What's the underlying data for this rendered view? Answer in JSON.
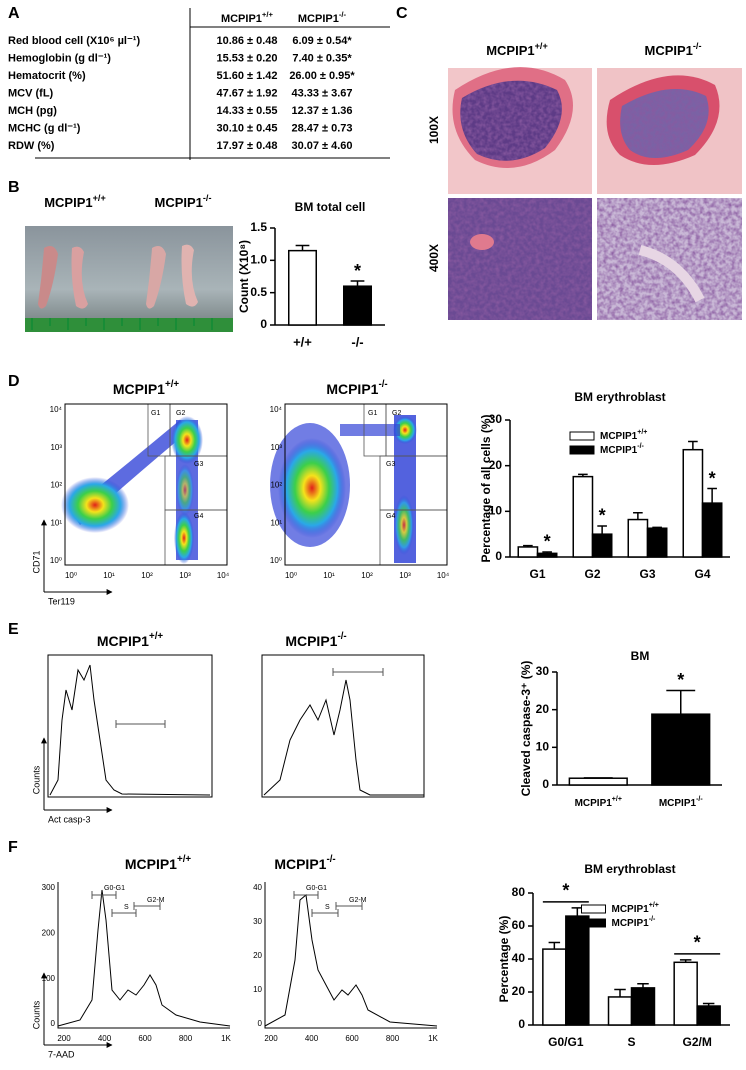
{
  "panel_labels": [
    "A",
    "B",
    "C",
    "D",
    "E",
    "F"
  ],
  "table": {
    "columns": [
      "MCPIP1+/+",
      "MCPIP1-/-"
    ],
    "rows": [
      [
        "Red blood cell (X10⁶ µl⁻¹)",
        "10.86 ± 0.48",
        "6.09 ± 0.54*"
      ],
      [
        "Hemoglobin (g dl⁻¹)",
        "15.53 ± 0.20",
        "7.40 ± 0.35*"
      ],
      [
        "Hematocrit (%)",
        "51.60 ± 1.42",
        "26.00 ± 0.95*"
      ],
      [
        "MCV (fL)",
        "47.67 ± 1.92",
        "43.33 ± 3.67"
      ],
      [
        "MCH (pg)",
        "14.33 ± 0.55",
        "12.37 ± 1.36"
      ],
      [
        "MCHC (g dl⁻¹)",
        "30.10 ± 0.45",
        "28.47 ± 0.73"
      ],
      [
        "RDW (%)",
        "17.97 ± 0.48",
        "30.07 ± 4.60"
      ]
    ]
  },
  "photo": {
    "labels": [
      "MCPIP1+/+",
      "MCPIP1-/-"
    ]
  },
  "histology": {
    "columns": [
      "MCPIP1+/+",
      "MCPIP1-/-"
    ],
    "rows": [
      "100X",
      "400X"
    ]
  },
  "flow_plots": [
    {
      "title": "MCPIP1+/+",
      "x_label": "Ter119",
      "y_label": "CD71",
      "xticks": [
        "10⁰",
        "10¹",
        "10²",
        "10³",
        "10⁴"
      ],
      "yticks": [
        "10⁰",
        "10¹",
        "10²",
        "10³",
        "10⁴"
      ],
      "gates": [
        "G1",
        "G2",
        "G3",
        "G4"
      ]
    },
    {
      "title": "MCPIP1-/-",
      "xticks": [
        "10⁰",
        "10¹",
        "10²",
        "10³",
        "10⁴"
      ],
      "yticks": [
        "10⁰",
        "10¹",
        "10²",
        "10³",
        "10⁴"
      ],
      "gates": [
        "G1",
        "G2",
        "G3",
        "G4"
      ]
    },
    {
      "title": "MCPIP1+/+",
      "x_label": "Act casp-3",
      "y_label": "Counts"
    },
    {
      "title": "MCPIP1-/-"
    },
    {
      "title": "MCPIP1+/+",
      "x_label": "7-AAD",
      "y_label": "Counts",
      "xticks": [
        "200",
        "400",
        "600",
        "800",
        "1K"
      ],
      "yticks": [
        "0",
        "100",
        "200",
        "300"
      ],
      "gates": [
        "G0-G1",
        "S",
        "G2-M"
      ]
    },
    {
      "title": "MCPIP1-/-",
      "xticks": [
        "200",
        "400",
        "600",
        "800",
        "1K"
      ],
      "yticks": [
        "0",
        "10",
        "20",
        "30",
        "40"
      ],
      "gates": [
        "G0-G1",
        "S",
        "G2-M"
      ]
    }
  ],
  "chart_data": [
    {
      "type": "bar",
      "title": "BM total cell",
      "y_label": "Count (X10⁸)",
      "categories": [
        "+/+",
        "-/-"
      ],
      "values": [
        1.15,
        0.6
      ],
      "errors": [
        0.08,
        0.08
      ],
      "colors": [
        "#ffffff",
        "#000000"
      ],
      "annotations": [
        null,
        "*"
      ],
      "ylim": [
        0,
        1.5
      ],
      "yticks": [
        0,
        0.5,
        {
          "value": 1,
          "label": "1.0"
        },
        1.5
      ]
    },
    {
      "type": "bar",
      "title": "BM erythroblast",
      "y_label": "Percentage of all cells (%)",
      "categories": [
        "G1",
        "G2",
        "G3",
        "G4"
      ],
      "series": [
        {
          "name": "MCPIP1+/+",
          "color": "#ffffff",
          "values": [
            2.2,
            17.6,
            8.2,
            23.5
          ],
          "errors": [
            0.3,
            0.5,
            1.5,
            1.8
          ]
        },
        {
          "name": "MCPIP1-/-",
          "color": "#000000",
          "values": [
            0.8,
            5.0,
            6.3,
            11.8
          ],
          "errors": [
            0.3,
            1.8,
            0.2,
            3.2
          ],
          "annotations": [
            "*",
            "*",
            null,
            "*"
          ]
        }
      ],
      "legend": "top",
      "ylim": [
        0,
        30
      ],
      "yticks": [
        0,
        10,
        20,
        30
      ]
    },
    {
      "type": "bar",
      "title": "BM",
      "y_label": "Cleaved caspase-3⁺ (%)",
      "categories": [
        "MCPIP1+/+",
        "MCPIP1-/-"
      ],
      "values": [
        1.8,
        18.8
      ],
      "errors": [
        0.1,
        6.3
      ],
      "colors": [
        "#ffffff",
        "#000000"
      ],
      "annotations": [
        null,
        "*"
      ],
      "ylim": [
        0,
        30
      ],
      "yticks": [
        0,
        10,
        20,
        30
      ]
    },
    {
      "type": "bar",
      "title": "BM erythroblast",
      "y_label": "Percentage (%)",
      "categories": [
        "G0/G1",
        "S",
        "G2/M"
      ],
      "series": [
        {
          "name": "MCPIP1+/+",
          "color": "#ffffff",
          "values": [
            46,
            17,
            38
          ],
          "errors": [
            4,
            4.5,
            1.5
          ]
        },
        {
          "name": "MCPIP1-/-",
          "color": "#000000",
          "values": [
            66,
            22.5,
            11.5
          ],
          "errors": [
            5,
            2.5,
            1.5
          ]
        }
      ],
      "annotations": [
        "*",
        null,
        "*"
      ],
      "legend": "top",
      "ylim": [
        0,
        80
      ],
      "yticks": [
        0,
        20,
        40,
        60,
        80
      ]
    }
  ]
}
